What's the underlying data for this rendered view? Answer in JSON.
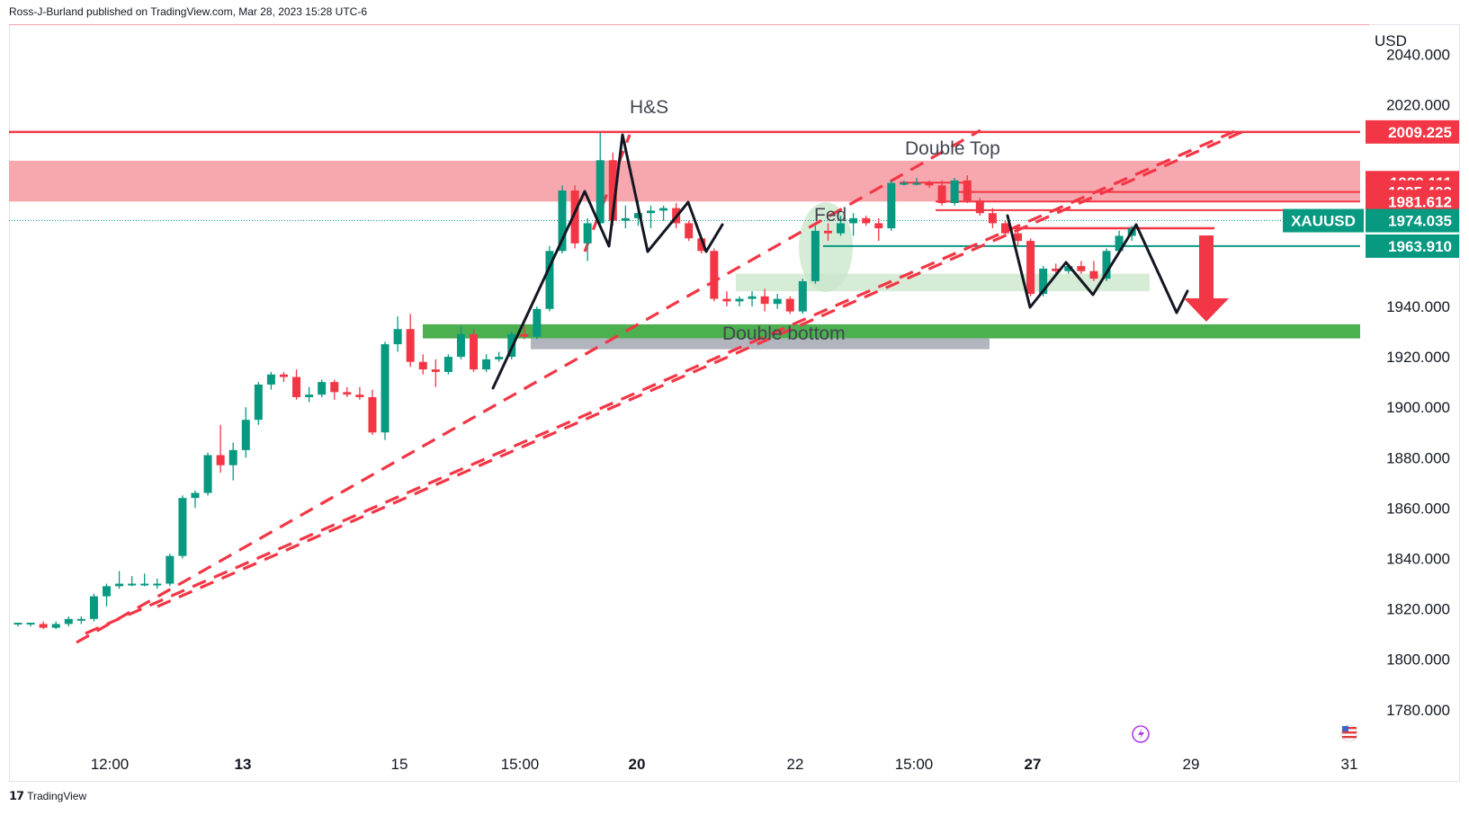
{
  "header": {
    "publish_line": "Ross-J-Burland published on TradingView.com, Mar 28, 2023 15:28 UTC-6"
  },
  "footer": {
    "brand": "TradingView"
  },
  "chart_data": {
    "type": "candlestick",
    "symbol": "XAUUSD",
    "currency": "USD",
    "ylim": [
      1776,
      2049
    ],
    "y_ticks": [
      "2040.000",
      "2020.000",
      "1940.000",
      "1920.000",
      "1900.000",
      "1880.000",
      "1860.000",
      "1840.000",
      "1820.000",
      "1800.000",
      "1780.000"
    ],
    "x_ticks": [
      "12:00",
      "13",
      "15",
      "15:00",
      "20",
      "22",
      "15:00",
      "27",
      "29",
      "31"
    ],
    "x_ticks_bold": [
      "13",
      "20",
      "27"
    ],
    "candles": [
      [
        1814.5,
        1814.5,
        1813,
        1814.5
      ],
      [
        1814,
        1814.5,
        1813,
        1814.5
      ],
      [
        1814,
        1815,
        1812,
        1812.5
      ],
      [
        1812.5,
        1815,
        1812,
        1814
      ],
      [
        1814,
        1817,
        1813,
        1816
      ],
      [
        1816,
        1817,
        1814,
        1816
      ],
      [
        1816,
        1826,
        1815,
        1825
      ],
      [
        1825,
        1830,
        1821,
        1829
      ],
      [
        1829,
        1835,
        1828,
        1830
      ],
      [
        1830,
        1833,
        1829,
        1830
      ],
      [
        1830,
        1834,
        1829,
        1830
      ],
      [
        1830,
        1832,
        1828,
        1830
      ],
      [
        1830,
        1842,
        1829,
        1841
      ],
      [
        1841,
        1865,
        1840,
        1864
      ],
      [
        1864,
        1867,
        1860,
        1866
      ],
      [
        1866,
        1882,
        1865,
        1881
      ],
      [
        1881,
        1893,
        1874,
        1877
      ],
      [
        1877,
        1886,
        1871,
        1883
      ],
      [
        1883,
        1900,
        1880,
        1895
      ],
      [
        1895,
        1910,
        1893,
        1909
      ],
      [
        1909,
        1914,
        1907,
        1913
      ],
      [
        1913,
        1914,
        1910,
        1912
      ],
      [
        1912,
        1915,
        1903,
        1904
      ],
      [
        1904,
        1908,
        1902,
        1905
      ],
      [
        1905,
        1911,
        1904,
        1910
      ],
      [
        1910,
        1911,
        1903,
        1906
      ],
      [
        1906,
        1908,
        1904,
        1905
      ],
      [
        1905,
        1908,
        1903,
        1904
      ],
      [
        1904,
        1907,
        1889,
        1890
      ],
      [
        1890,
        1926,
        1887,
        1925
      ],
      [
        1925,
        1936,
        1922,
        1931
      ],
      [
        1931,
        1937,
        1916,
        1918
      ],
      [
        1918,
        1921,
        1913,
        1915
      ],
      [
        1915,
        1919,
        1908,
        1914
      ],
      [
        1914,
        1921,
        1913,
        1920
      ],
      [
        1920,
        1932,
        1919,
        1929
      ],
      [
        1929,
        1931,
        1914,
        1915
      ],
      [
        1915,
        1921,
        1914,
        1919
      ],
      [
        1919,
        1922,
        1918,
        1920
      ],
      [
        1920,
        1930,
        1919,
        1929
      ],
      [
        1929,
        1932,
        1927,
        1928
      ],
      [
        1928,
        1940,
        1927,
        1939
      ],
      [
        1939,
        1964,
        1938,
        1962
      ],
      [
        1962,
        1988,
        1961,
        1986
      ],
      [
        1986,
        1988,
        1963,
        1965
      ],
      [
        1965,
        1975,
        1958,
        1973
      ],
      [
        1973,
        2009,
        1971,
        1998
      ],
      [
        1998,
        2001,
        1972,
        1974
      ],
      [
        1974,
        1980,
        1971,
        1975
      ],
      [
        1975,
        1982,
        1972,
        1977
      ],
      [
        1977,
        1980,
        1971,
        1978
      ],
      [
        1978,
        1980,
        1974,
        1979
      ],
      [
        1979,
        1981,
        1971,
        1973
      ],
      [
        1973,
        1974,
        1966,
        1967
      ],
      [
        1967,
        1968,
        1961,
        1962
      ],
      [
        1962,
        1963,
        1942,
        1943
      ],
      [
        1943,
        1946,
        1940,
        1942
      ],
      [
        1942,
        1944,
        1940,
        1943
      ],
      [
        1943,
        1946,
        1940,
        1944
      ],
      [
        1944,
        1947,
        1938,
        1941
      ],
      [
        1941,
        1945,
        1939,
        1943
      ],
      [
        1943,
        1944,
        1937,
        1938
      ],
      [
        1938,
        1951,
        1937,
        1950
      ],
      [
        1950,
        1972,
        1949,
        1970
      ],
      [
        1970,
        1973,
        1966,
        1969
      ],
      [
        1969,
        1976,
        1968,
        1973
      ],
      [
        1973,
        1977,
        1968,
        1975
      ],
      [
        1975,
        1976,
        1972,
        1973
      ],
      [
        1973,
        1975,
        1966,
        1971
      ],
      [
        1971,
        1990,
        1970,
        1989
      ],
      [
        1989,
        1990,
        1988,
        1989
      ],
      [
        1989,
        1991,
        1988,
        1989
      ],
      [
        1989,
        1990,
        1987,
        1988
      ],
      [
        1988,
        1990,
        1980,
        1981
      ],
      [
        1981,
        1991,
        1980,
        1990
      ],
      [
        1990,
        1992,
        1981,
        1982
      ],
      [
        1982,
        1983,
        1976,
        1977
      ],
      [
        1977,
        1979,
        1971,
        1973
      ],
      [
        1973,
        1974,
        1968,
        1969
      ],
      [
        1969,
        1970,
        1964,
        1966
      ],
      [
        1966,
        1967,
        1944,
        1945
      ],
      [
        1945,
        1956,
        1944,
        1955
      ],
      [
        1955,
        1957,
        1952,
        1954
      ],
      [
        1954,
        1957,
        1953,
        1956
      ],
      [
        1956,
        1958,
        1953,
        1954
      ],
      [
        1954,
        1958,
        1950,
        1951
      ],
      [
        1951,
        1963,
        1950,
        1962
      ],
      [
        1962,
        1970,
        1961,
        1968
      ],
      [
        1968,
        1972,
        1966,
        1971
      ]
    ],
    "horizontal_lines": [
      {
        "label": "2009.225",
        "value": 2009.225,
        "color": "#f23645"
      },
      {
        "label": "1989.111",
        "value": 1989.111,
        "color": "#f23645"
      },
      {
        "label": "1985.403",
        "value": 1985.403,
        "color": "#f23645"
      },
      {
        "label": "1981.612",
        "value": 1981.612,
        "color": "#f23645"
      },
      {
        "label": "1963.910",
        "value": 1963.91,
        "color": "#089981"
      }
    ],
    "current_price": {
      "symbol": "XAUUSD",
      "value": "1974.035",
      "price": 1974.035
    },
    "zones": [
      {
        "name": "resistance-zone",
        "from": 1981.6,
        "to": 1997.8,
        "color": "#f7a8ae"
      },
      {
        "name": "support-zone",
        "from": 1927.3,
        "to": 1932.9,
        "color": "#4caf50"
      },
      {
        "name": "grey-zone",
        "from": 1923,
        "to": 1927.3,
        "color": "#b2b5be"
      },
      {
        "name": "light-green-zone",
        "from": 1946,
        "to": 1953,
        "color": "#d7ecd7"
      }
    ],
    "annotations": {
      "hs": "H&S",
      "double_top": "Double Top",
      "fed": "Fed",
      "double_bottom": "Double bottom"
    },
    "colors": {
      "up": "#089981",
      "down": "#f23645",
      "dashed": "#f23645",
      "path": "#131722"
    }
  }
}
